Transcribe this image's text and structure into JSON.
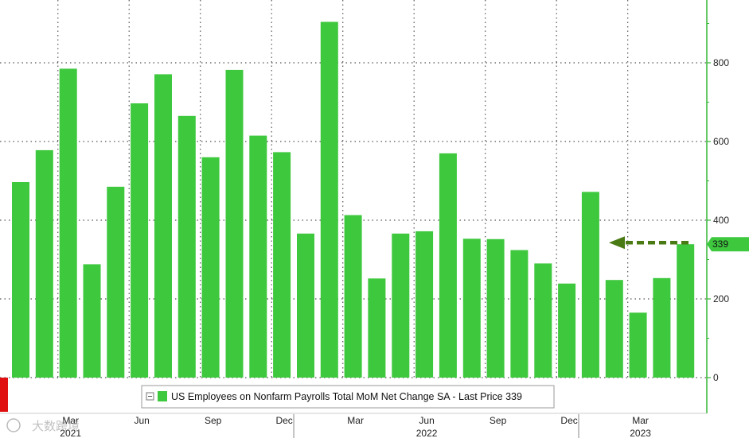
{
  "chart_data": {
    "type": "bar",
    "title": "",
    "xlabel": "",
    "ylabel": "",
    "ylim": [
      -90,
      960
    ],
    "y_ticks": [
      0,
      200,
      400,
      600,
      800
    ],
    "y_axis_side": "right",
    "grid": true,
    "legend": "bottom-center",
    "legend_label": "US Employees on Nonfarm Payrolls Total MoM Net Change SA - Last Price 339",
    "last_price_label": "339",
    "last_price_value": 339,
    "series": [
      {
        "name": "US Employees on Nonfarm Payrolls Total MoM Net Change SA",
        "color": "#3ec83e",
        "values": [
          497,
          578,
          785,
          288,
          485,
          697,
          771,
          665,
          560,
          782,
          615,
          573,
          366,
          904,
          413,
          252,
          366,
          372,
          570,
          353,
          352,
          324,
          290,
          239,
          472,
          248,
          165,
          253,
          339
        ]
      }
    ],
    "x_ticks": [
      {
        "index": 2,
        "month": "Mar",
        "year": "2021"
      },
      {
        "index": 5,
        "month": "Jun",
        "year": ""
      },
      {
        "index": 8,
        "month": "Sep",
        "year": ""
      },
      {
        "index": 11,
        "month": "Dec",
        "year": ""
      },
      {
        "index": 14,
        "month": "Mar",
        "year": ""
      },
      {
        "index": 17,
        "month": "Jun",
        "year": "2022"
      },
      {
        "index": 20,
        "month": "Sep",
        "year": ""
      },
      {
        "index": 23,
        "month": "Dec",
        "year": ""
      },
      {
        "index": 26,
        "month": "Mar",
        "year": "2023"
      }
    ],
    "year_boundaries": [
      11.5,
      23.5
    ],
    "colors": {
      "bar": "#3ec83e",
      "last_price_tag": "#3ec83e",
      "arrow": "#4a7a14",
      "axis": "#35b535",
      "grid": "#555555",
      "left_marker": "#e01010"
    },
    "watermark": "大数跨境"
  }
}
